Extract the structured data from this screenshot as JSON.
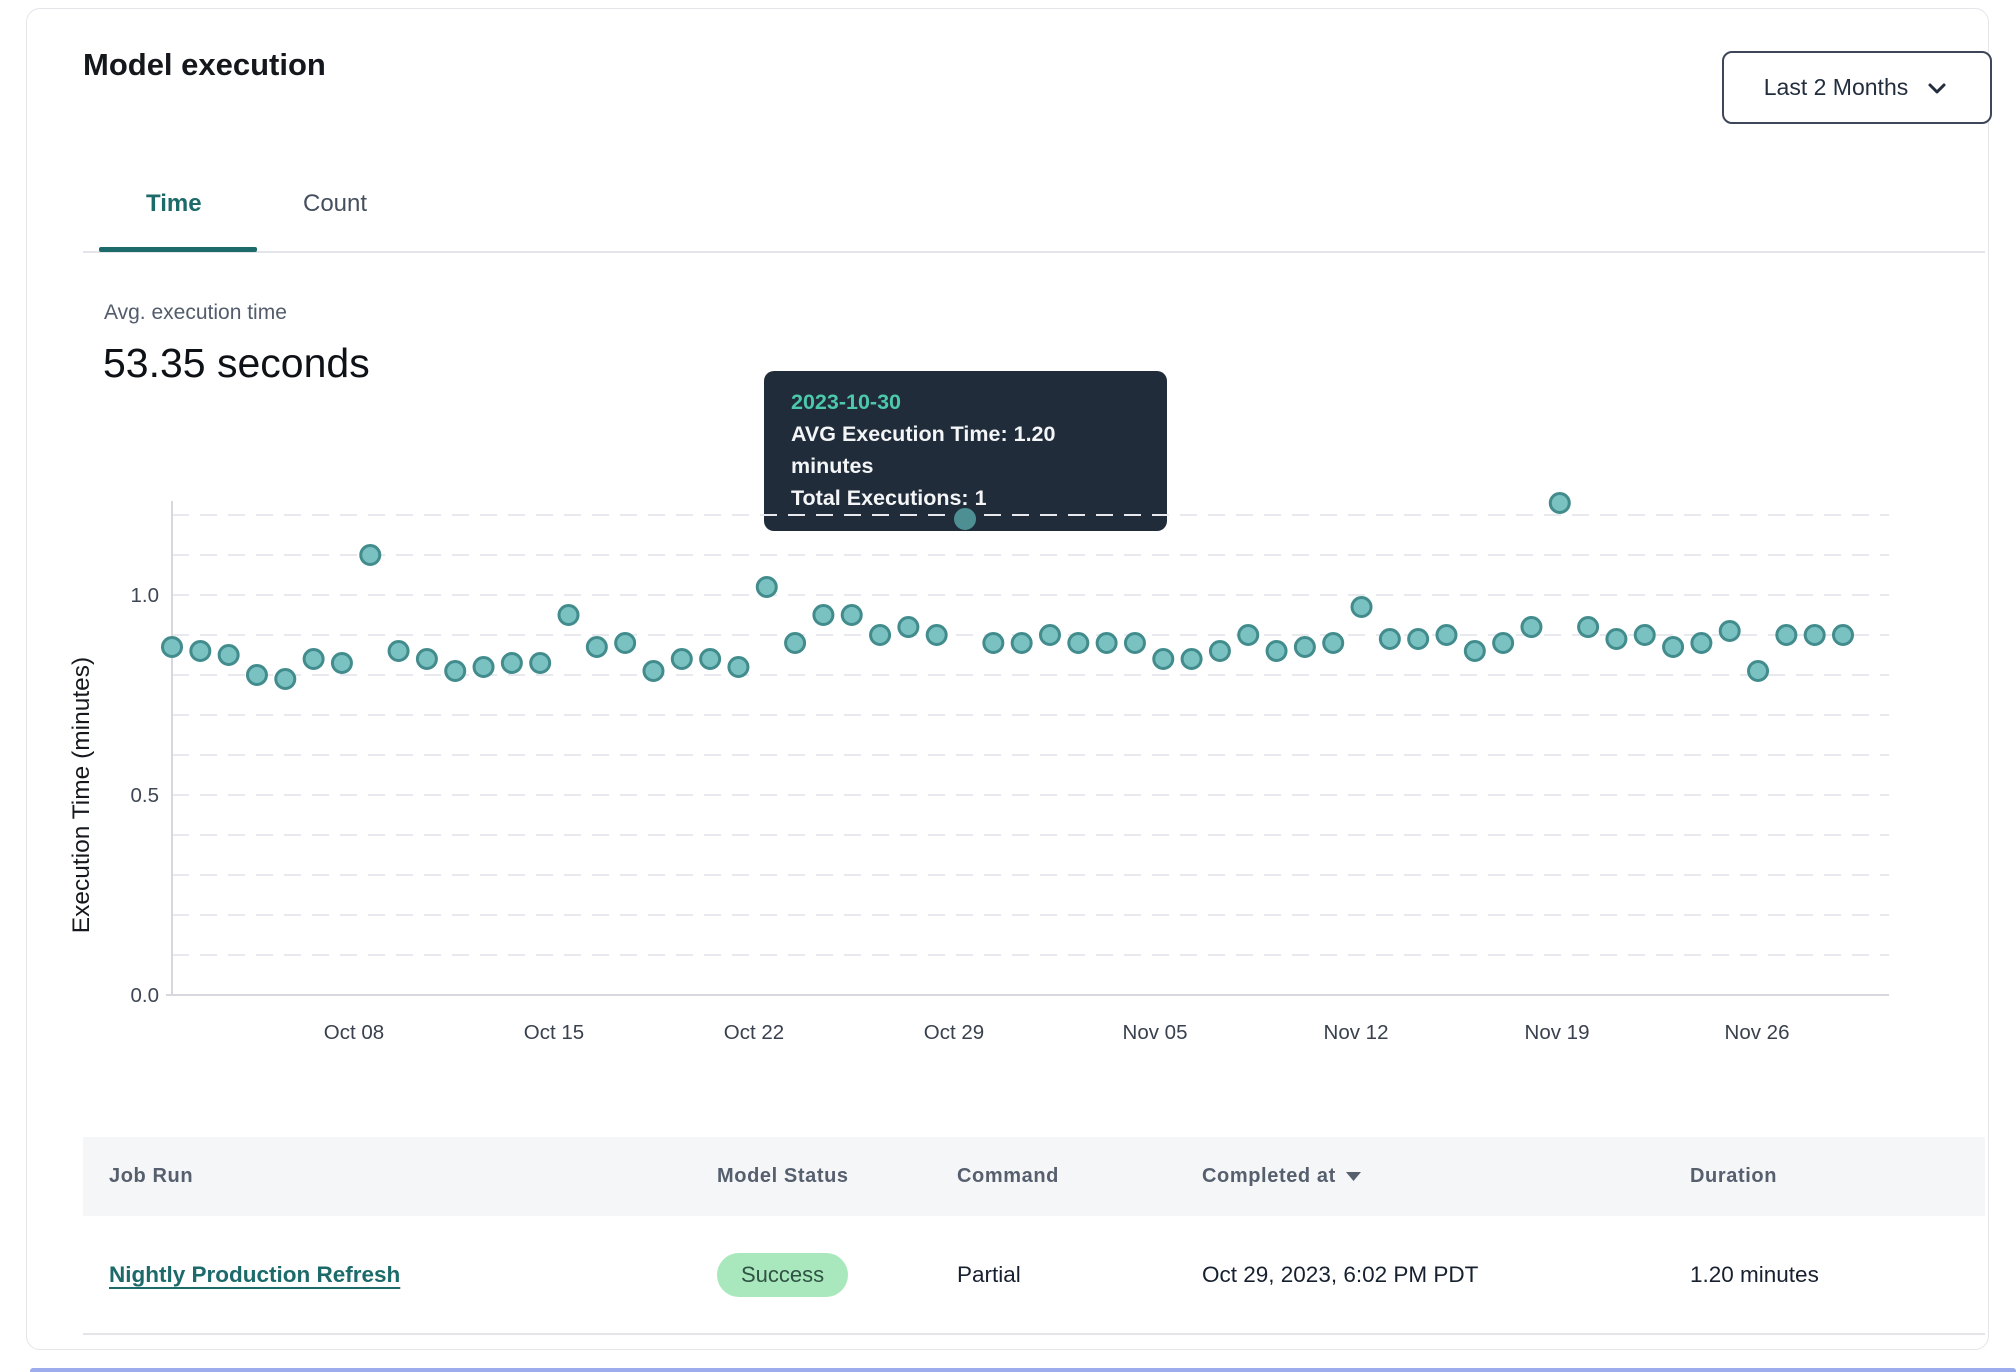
{
  "card": {
    "title": "Model execution",
    "range_selector": {
      "label": "Last 2 Months"
    },
    "tabs": [
      {
        "label": "Time",
        "active": true
      },
      {
        "label": "Count",
        "active": false
      }
    ],
    "stat": {
      "label": "Avg. execution time",
      "value": "53.35 seconds"
    },
    "tooltip": {
      "date": "2023-10-30",
      "avg_line": "AVG Execution Time: 1.20 minutes",
      "total_line": "Total Executions: 1"
    }
  },
  "chart_data": {
    "type": "scatter",
    "title": "",
    "xlabel": "",
    "ylabel": "Execution Time (minutes)",
    "ylim": [
      0.0,
      1.25
    ],
    "grid": "dashed horizontal gridlines every 0.1 minutes",
    "legend": "none",
    "ytick_values": [
      1.0,
      0.5,
      0.0
    ],
    "ytick_labels": [
      "1.0",
      "0.5",
      "0.0"
    ],
    "xtick_labels": [
      "Oct 08",
      "Oct 15",
      "Oct 22",
      "Oct 29",
      "Nov 05",
      "Nov 12",
      "Nov 19",
      "Nov 26"
    ],
    "point_color": "#7ac1c1",
    "point_stroke": "#438c8d",
    "highlight_color": "#4d8f92",
    "highlight": {
      "date": "2023-10-30",
      "value": 1.19
    },
    "series": [
      {
        "name": "AVG Execution Time (minutes)",
        "x": [
          "2023-10-02",
          "2023-10-03",
          "2023-10-04",
          "2023-10-05",
          "2023-10-06",
          "2023-10-07",
          "2023-10-08",
          "2023-10-09",
          "2023-10-10",
          "2023-10-11",
          "2023-10-12",
          "2023-10-13",
          "2023-10-14",
          "2023-10-15",
          "2023-10-16",
          "2023-10-17",
          "2023-10-18",
          "2023-10-19",
          "2023-10-20",
          "2023-10-21",
          "2023-10-22",
          "2023-10-23",
          "2023-10-24",
          "2023-10-25",
          "2023-10-26",
          "2023-10-27",
          "2023-10-28",
          "2023-10-29",
          "2023-10-30",
          "2023-10-31",
          "2023-11-01",
          "2023-11-02",
          "2023-11-03",
          "2023-11-04",
          "2023-11-05",
          "2023-11-06",
          "2023-11-07",
          "2023-11-08",
          "2023-11-09",
          "2023-11-10",
          "2023-11-11",
          "2023-11-12",
          "2023-11-13",
          "2023-11-14",
          "2023-11-15",
          "2023-11-16",
          "2023-11-17",
          "2023-11-18",
          "2023-11-19",
          "2023-11-20",
          "2023-11-21",
          "2023-11-22",
          "2023-11-23",
          "2023-11-24",
          "2023-11-25",
          "2023-11-26",
          "2023-11-27",
          "2023-11-28",
          "2023-11-29",
          "2023-11-30"
        ],
        "y": [
          0.87,
          0.86,
          0.85,
          0.8,
          0.79,
          0.84,
          0.83,
          1.1,
          0.86,
          0.84,
          0.81,
          0.82,
          0.83,
          0.83,
          0.95,
          0.87,
          0.88,
          0.81,
          0.84,
          0.84,
          0.82,
          1.02,
          0.88,
          0.95,
          0.95,
          0.9,
          0.92,
          0.9,
          1.19,
          0.88,
          0.88,
          0.9,
          0.88,
          0.88,
          0.88,
          0.84,
          0.84,
          0.86,
          0.9,
          0.86,
          0.87,
          0.88,
          0.97,
          0.89,
          0.89,
          0.9,
          0.86,
          0.88,
          0.92,
          1.23,
          0.92,
          0.89,
          0.9,
          0.87,
          0.88,
          0.91,
          0.81,
          0.9,
          0.9,
          0.9
        ]
      }
    ]
  },
  "table": {
    "columns": [
      "Job Run",
      "Model Status",
      "Command",
      "Completed at",
      "Duration"
    ],
    "sort": {
      "column": "Completed at",
      "direction": "desc"
    },
    "rows": [
      {
        "job_run": "Nightly Production Refresh",
        "model_status": "Success",
        "status_bg": "#a9e8bc",
        "command": "Partial",
        "completed_at": "Oct 29, 2023, 6:02 PM PDT",
        "duration": "1.20 minutes"
      }
    ]
  }
}
